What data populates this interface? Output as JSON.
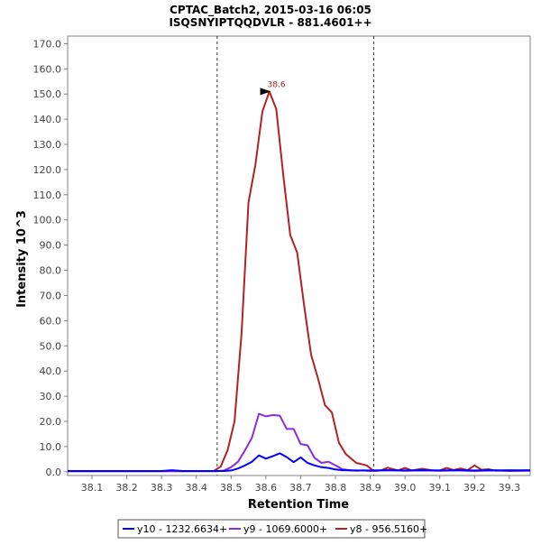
{
  "chart_data": {
    "type": "line",
    "title": "CPTAC_Batch2, 2015-03-16 06:05",
    "subtitle": "ISQSNYIPTQQDVLR - 881.4601++",
    "xlabel": "Retention Time",
    "ylabel": "Intensity 10^3",
    "xlim": [
      38.03,
      39.36
    ],
    "ylim": [
      -1.5,
      173.0
    ],
    "xticks": [
      38.1,
      38.2,
      38.3,
      38.4,
      38.5,
      38.6,
      38.7,
      38.8,
      38.9,
      39.0,
      39.1,
      39.2,
      39.3
    ],
    "xtick_labels": [
      "38.1",
      "38.2",
      "38.3",
      "38.4",
      "38.5",
      "38.6",
      "38.7",
      "38.8",
      "38.9",
      "39.0",
      "39.1",
      "39.2",
      "39.3"
    ],
    "yticks": [
      0,
      10,
      20,
      30,
      40,
      50,
      60,
      70,
      80,
      90,
      100,
      110,
      120,
      130,
      140,
      150,
      160,
      170
    ],
    "ytick_labels": [
      "0.0",
      "10.0",
      "20.0",
      "30.0",
      "40.0",
      "50.0",
      "60.0",
      "70.0",
      "80.0",
      "90.0",
      "100.0",
      "110.0",
      "120.0",
      "130.0",
      "140.0",
      "150.0",
      "160.0",
      "170.0"
    ],
    "boundaries": [
      38.46,
      38.91
    ],
    "peak_annotation": {
      "label": "38.6",
      "x": 38.62,
      "y": 151.0
    },
    "grid": false,
    "legend_position": "bottom",
    "series": [
      {
        "name": "y10 - 1232.6634+",
        "color": "#0000ff",
        "x": [
          38.03,
          38.3,
          38.33,
          38.36,
          38.46,
          38.48,
          38.5,
          38.52,
          38.54,
          38.56,
          38.58,
          38.6,
          38.62,
          38.64,
          38.66,
          38.68,
          38.7,
          38.72,
          38.74,
          38.76,
          38.78,
          38.8,
          38.82,
          38.86,
          38.9,
          38.95,
          39.0,
          39.05,
          39.1,
          39.15,
          39.2,
          39.25,
          39.3,
          39.36
        ],
        "y": [
          0.3,
          0.3,
          0.6,
          0.3,
          0.3,
          0.3,
          0.5,
          1.3,
          2.5,
          4.0,
          6.5,
          5.2,
          6.2,
          7.3,
          5.8,
          3.8,
          5.7,
          3.5,
          2.5,
          1.8,
          1.5,
          0.9,
          0.6,
          0.5,
          0.5,
          0.6,
          0.5,
          0.6,
          0.5,
          0.6,
          0.5,
          0.6,
          0.5,
          0.6
        ]
      },
      {
        "name": "y9 - 1069.6000+",
        "color": "#8a2be2",
        "x": [
          38.03,
          38.46,
          38.48,
          38.5,
          38.52,
          38.54,
          38.56,
          38.58,
          38.6,
          38.62,
          38.64,
          38.66,
          38.68,
          38.7,
          38.72,
          38.74,
          38.76,
          38.78,
          38.8,
          38.82,
          38.84,
          38.86,
          38.88,
          38.9,
          38.95,
          39.0,
          39.05,
          39.1,
          39.15,
          39.2,
          39.25,
          39.3,
          39.36
        ],
        "y": [
          0.2,
          0.2,
          0.5,
          1.8,
          4.0,
          8.5,
          13.5,
          23.0,
          22.0,
          22.5,
          22.3,
          17.0,
          17.0,
          11.0,
          10.5,
          5.5,
          3.5,
          4.0,
          2.5,
          1.0,
          0.6,
          0.4,
          0.5,
          0.3,
          0.6,
          0.4,
          0.5,
          0.4,
          0.5,
          0.3,
          0.5,
          0.3,
          0.4
        ]
      },
      {
        "name": "y8 - 956.5160+",
        "color": "#b22222",
        "x": [
          38.03,
          38.45,
          38.47,
          38.49,
          38.51,
          38.53,
          38.55,
          38.57,
          38.59,
          38.61,
          38.63,
          38.65,
          38.67,
          38.69,
          38.71,
          38.73,
          38.75,
          38.77,
          38.79,
          38.81,
          38.83,
          38.86,
          38.89,
          38.91,
          38.93,
          38.95,
          38.98,
          39.0,
          39.02,
          39.05,
          39.08,
          39.1,
          39.12,
          39.14,
          39.16,
          39.18,
          39.2,
          39.22,
          39.24,
          39.26,
          39.28,
          39.3,
          39.33,
          39.36
        ],
        "y": [
          0.2,
          0.3,
          2.0,
          8.5,
          20.0,
          55.0,
          107.0,
          122.0,
          143.0,
          151.0,
          144.0,
          118.0,
          94.0,
          87.0,
          66.0,
          46.5,
          37.0,
          26.5,
          23.5,
          11.5,
          7.0,
          3.5,
          2.5,
          0.3,
          0.5,
          1.6,
          0.5,
          1.5,
          0.5,
          1.2,
          0.5,
          0.5,
          1.5,
          0.7,
          1.3,
          0.6,
          2.5,
          0.8,
          1.0,
          0.4,
          0.5,
          0.6,
          0.5,
          0.5
        ]
      }
    ]
  }
}
